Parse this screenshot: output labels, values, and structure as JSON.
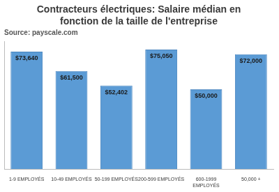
{
  "chart_data": {
    "type": "bar",
    "title": "Contracteurs électriques: Salaire médian en fonction de la taille de l'entreprise",
    "subtitle": "Source: payscale.com",
    "categories": [
      "1-9 EMPLOYÉS",
      "10-49 EMPLOYÉS",
      "50-199 EMPLOYÉS",
      "200-599 EMPLOYÉS",
      "600-1999 EMPLOYÉS",
      "50,000 +"
    ],
    "values": [
      73640,
      61500,
      52402,
      75050,
      50000,
      72000
    ],
    "value_labels": [
      "$73,640",
      "$61,500",
      "$52,402",
      "$75,050",
      "$50,000",
      "$72,000"
    ],
    "data_labels": true,
    "color": "#5b9bd5",
    "ylim": [
      0,
      80000
    ],
    "tick_labels": "x",
    "grid": false
  }
}
